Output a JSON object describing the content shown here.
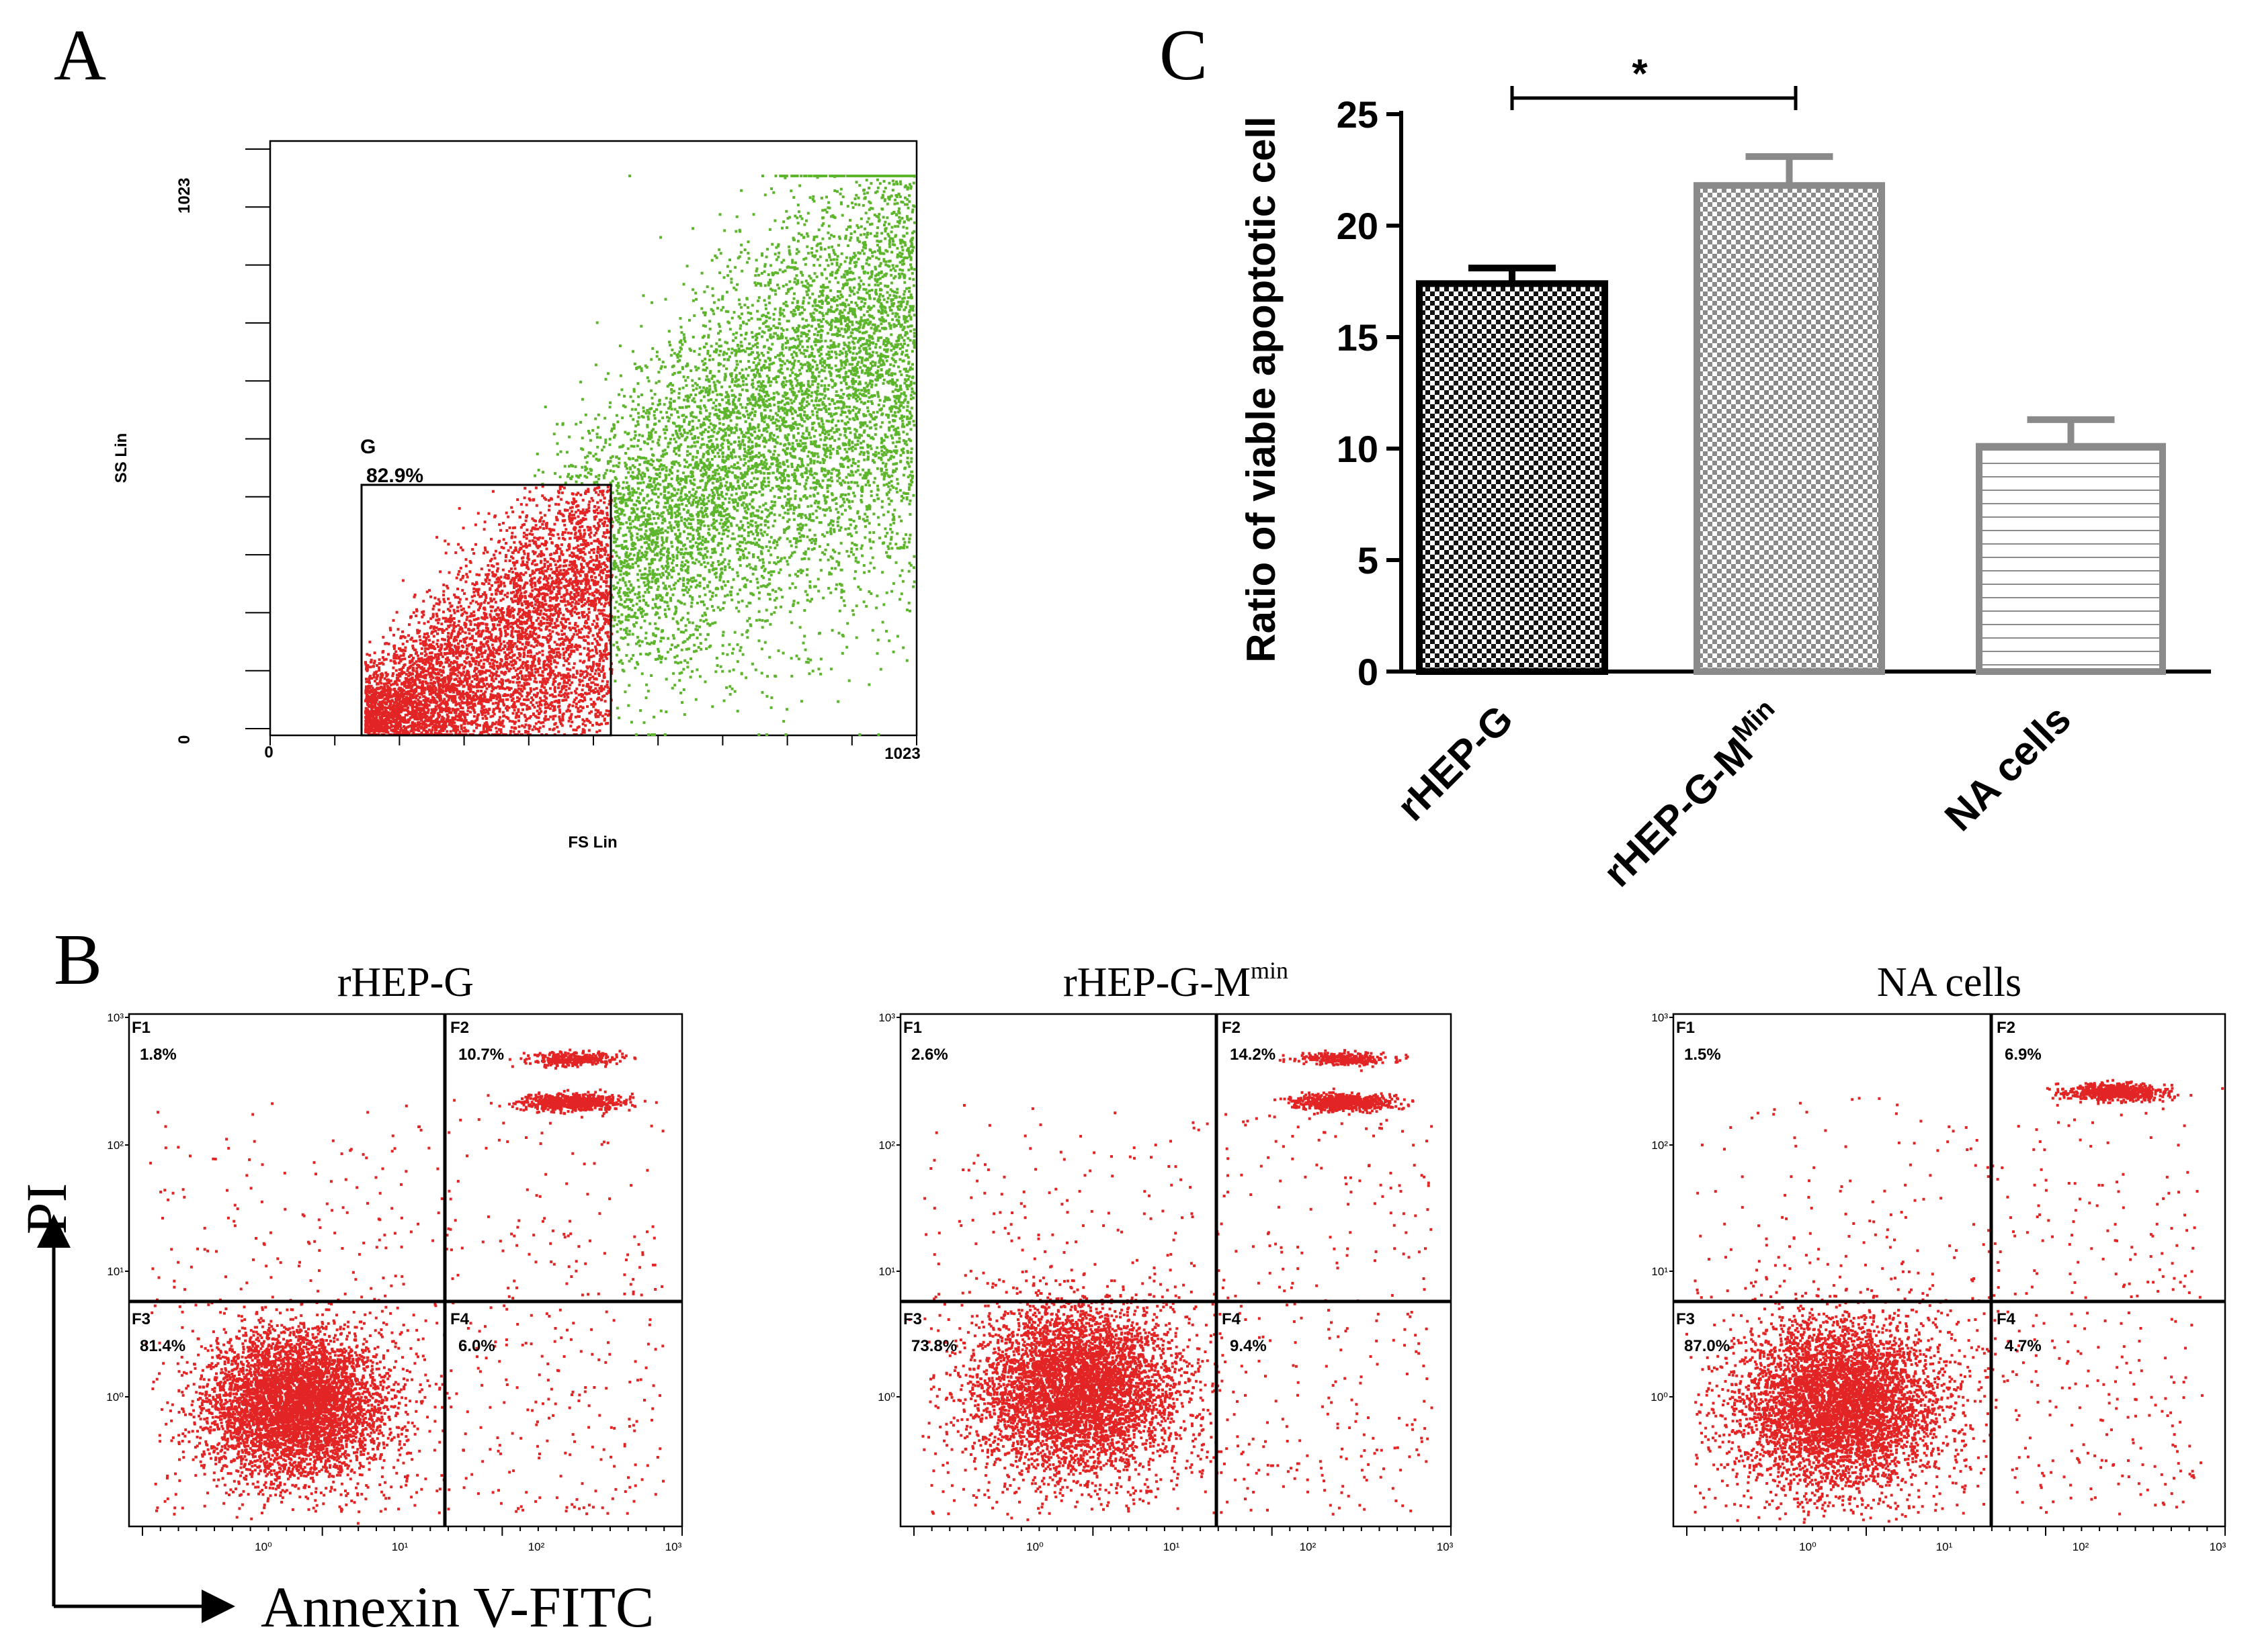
{
  "panels": {
    "A": {
      "letter": "A",
      "y_axis_label": "SS Lin",
      "x_axis_label": "FS Lin",
      "y_tick_max": "1023",
      "y_tick_min": "0",
      "x_tick_min": "0",
      "x_tick_max": "1023",
      "gate_name": "G",
      "gate_percent": "82.9%",
      "gated_color": "#e32424",
      "ungated_color": "#5db52c"
    },
    "B": {
      "letter": "B",
      "y_axis_title": "PI",
      "x_axis_title": "Annexin V-FITC",
      "dot_color": "#e32424",
      "tick_labels": [
        "10⁰",
        "10¹",
        "10²",
        "10³"
      ],
      "plots": [
        {
          "title": "rHEP-G",
          "title_sup": "",
          "quadrants": [
            {
              "label": "F1",
              "value": "1.8%"
            },
            {
              "label": "F2",
              "value": "10.7%"
            },
            {
              "label": "F3",
              "value": "81.4%"
            },
            {
              "label": "F4",
              "value": "6.0%"
            }
          ]
        },
        {
          "title": "rHEP-G-M",
          "title_sup": "min",
          "quadrants": [
            {
              "label": "F1",
              "value": "2.6%"
            },
            {
              "label": "F2",
              "value": "14.2%"
            },
            {
              "label": "F3",
              "value": "73.8%"
            },
            {
              "label": "F4",
              "value": "9.4%"
            }
          ]
        },
        {
          "title": "NA cells",
          "title_sup": "",
          "quadrants": [
            {
              "label": "F1",
              "value": "1.5%"
            },
            {
              "label": "F2",
              "value": "6.9%"
            },
            {
              "label": "F3",
              "value": "87.0%"
            },
            {
              "label": "F4",
              "value": "4.7%"
            }
          ]
        }
      ]
    },
    "C": {
      "letter": "C",
      "significance": "*"
    }
  },
  "chart_data": [
    {
      "type": "bar",
      "panel": "C",
      "title": "",
      "ylabel": "Ratio of viable apoptotic cell",
      "xlabel": "",
      "categories": [
        "rHEP-G",
        "rHEP-G-M",
        "NA cells"
      ],
      "category_sups": [
        "",
        "Min",
        ""
      ],
      "values": [
        17.4,
        21.8,
        10.1
      ],
      "errors": [
        0.7,
        1.3,
        1.2
      ],
      "ylim": [
        0,
        25
      ],
      "yticks": [
        "0",
        "5",
        "10",
        "15",
        "20",
        "25"
      ],
      "significance_pairs": [
        {
          "from": 0,
          "to": 1,
          "label": "*"
        }
      ]
    },
    {
      "type": "scatter",
      "panel": "A",
      "title": "",
      "xlabel": "FS Lin",
      "ylabel": "SS Lin",
      "xlim": [
        0,
        1023
      ],
      "ylim": [
        0,
        1023
      ],
      "series": [
        {
          "name": "G",
          "percent": "82.9%"
        },
        {
          "name": "outside gate"
        }
      ]
    }
  ]
}
